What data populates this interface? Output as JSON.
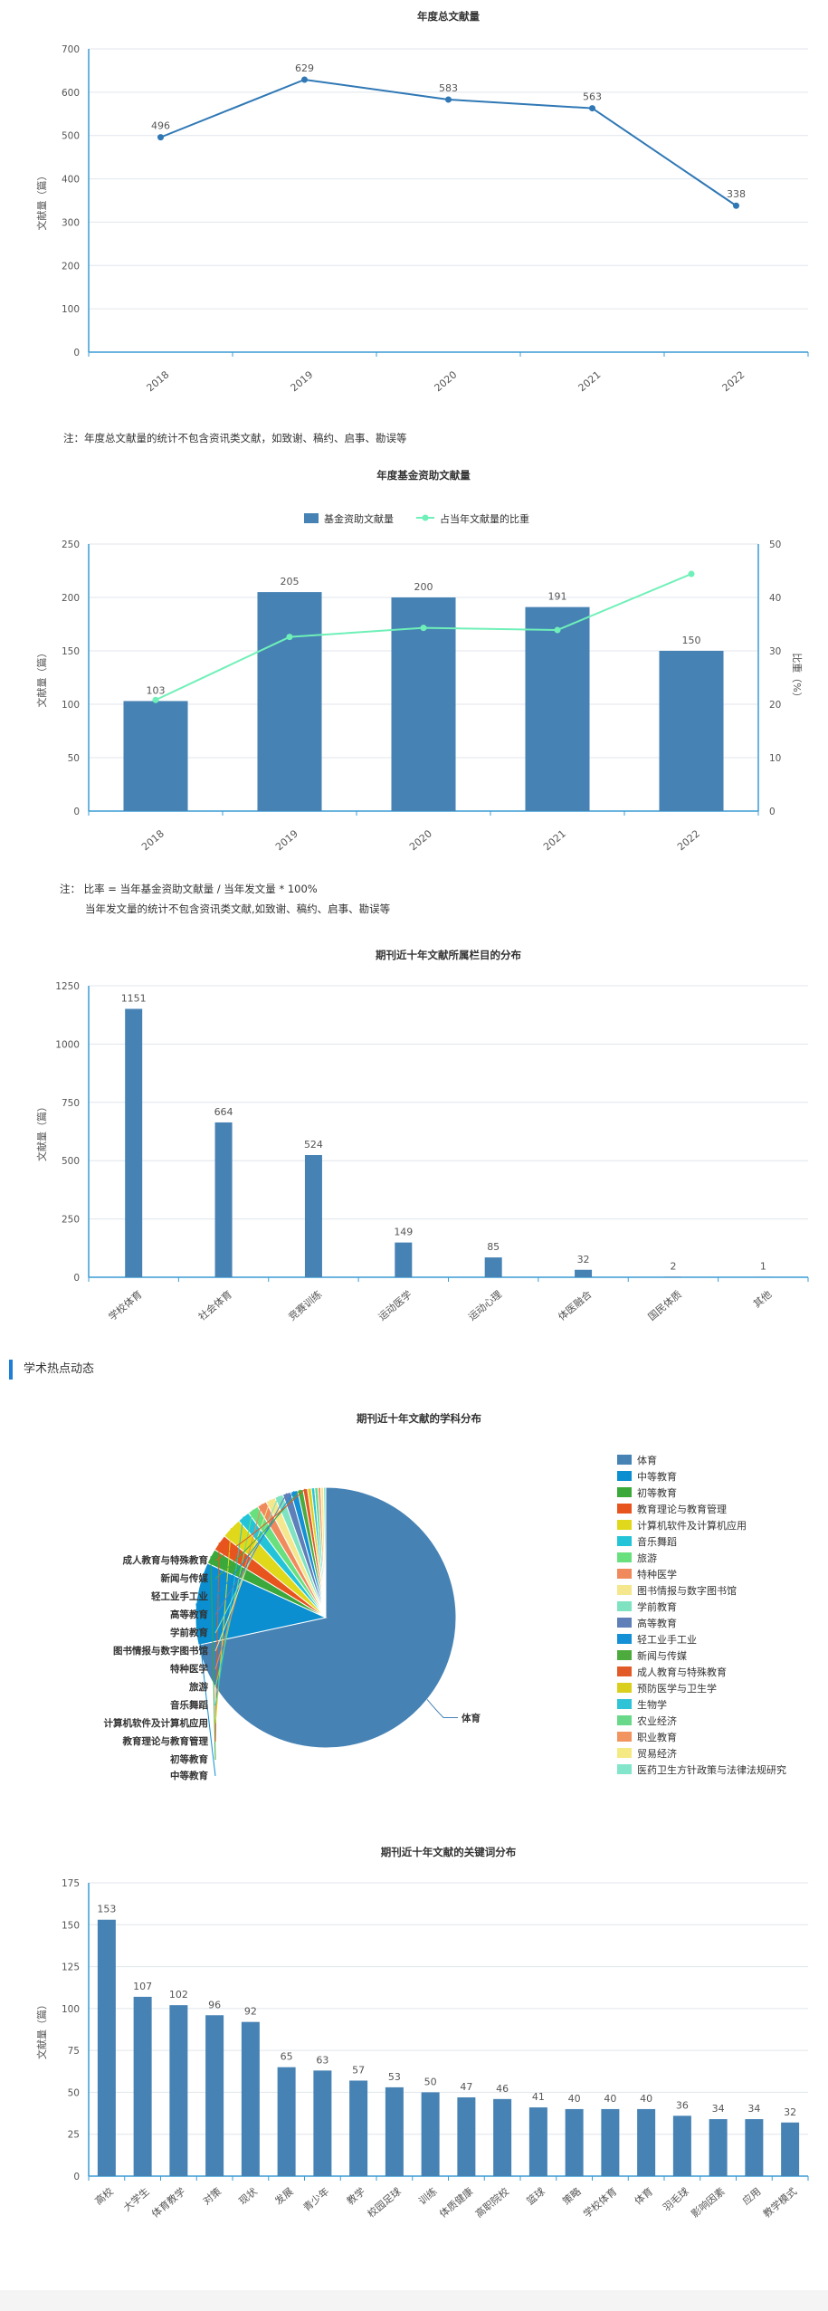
{
  "chart_data": [
    {
      "id": "annual",
      "type": "line",
      "title": "年度总文献量",
      "categories": [
        "2018",
        "2019",
        "2020",
        "2021",
        "2022"
      ],
      "values": [
        496,
        629,
        583,
        563,
        338
      ],
      "ylabel": "文献量（篇）",
      "ylim": [
        0,
        700
      ],
      "yticks": [
        0,
        100,
        200,
        300,
        400,
        500,
        600,
        700
      ],
      "color": "#2f78b5"
    },
    {
      "id": "fund",
      "type": "bar",
      "title": "年度基金资助文献量",
      "categories": [
        "2018",
        "2019",
        "2020",
        "2021",
        "2022"
      ],
      "series": [
        {
          "name": "基金资助文献量",
          "values": [
            103,
            205,
            200,
            191,
            150
          ],
          "color": "#4682b4"
        },
        {
          "name": "占当年文献量的比重",
          "values": [
            20.8,
            32.6,
            34.3,
            33.9,
            44.4
          ],
          "color": "#6ff0b8"
        }
      ],
      "ylabel": "文献量（篇）",
      "y2label": "比重（%）",
      "ylim": [
        0,
        250
      ],
      "yticks": [
        0,
        50,
        100,
        150,
        200,
        250
      ],
      "y2lim": [
        0,
        50
      ],
      "y2ticks": [
        0,
        10,
        20,
        30,
        40,
        50
      ]
    },
    {
      "id": "column",
      "type": "bar",
      "title": "期刊近十年文献所属栏目的分布",
      "categories": [
        "学校体育",
        "社会体育",
        "竞赛训练",
        "运动医学",
        "运动心理",
        "体医融合",
        "国民体质",
        "其他"
      ],
      "values": [
        1151,
        664,
        524,
        149,
        85,
        32,
        2,
        1
      ],
      "ylabel": "文献量（篇）",
      "ylim": [
        0,
        1250
      ],
      "yticks": [
        0,
        250,
        500,
        750,
        1000,
        1250
      ],
      "color": "#4682b4"
    },
    {
      "id": "subject",
      "type": "pie",
      "title": "期刊近十年文献的学科分布",
      "labels": [
        "体育",
        "中等教育",
        "初等教育",
        "教育理论与教育管理",
        "计算机软件及计算机应用",
        "音乐舞蹈",
        "旅游",
        "特种医学",
        "图书情报与数字图书馆",
        "学前教育",
        "高等教育",
        "轻工业手工业",
        "新闻与传媒",
        "成人教育与特殊教育",
        "预防医学与卫生学",
        "生物学",
        "农业经济",
        "职业教育",
        "贸易经济",
        "医药卫生方针政策与法律法规研究"
      ],
      "values": [
        2100,
        300,
        55,
        60,
        75,
        45,
        40,
        35,
        35,
        30,
        30,
        25,
        20,
        16,
        14,
        12,
        12,
        10,
        10,
        8
      ],
      "colors": [
        "#4682b4",
        "#0b8fd1",
        "#3aa83a",
        "#e8541e",
        "#e0d81a",
        "#23c4d8",
        "#69e07e",
        "#f08a5d",
        "#f4e78e",
        "#7fe3c2",
        "#5e7fb8",
        "#1390d6",
        "#4cab3c",
        "#e25a28",
        "#dbcf1e",
        "#2ec3d6",
        "#6ad889",
        "#f1945f",
        "#f5e983",
        "#83e5c9"
      ],
      "pie_callouts": [
        "体育",
        "中等教育",
        "初等教育",
        "教育理论与教育管理",
        "计算机软件及计算机应用",
        "音乐舞蹈",
        "旅游",
        "特种医学",
        "图书情报与数字图书馆",
        "学前教育",
        "高等教育",
        "轻工业手工业",
        "新闻与传媒",
        "成人教育与特殊教育"
      ],
      "legend": [
        "体育",
        "中等教育",
        "初等教育",
        "教育理论与教育管理",
        "计算机软件及计算机应用",
        "音乐舞蹈",
        "旅游",
        "特种医学",
        "图书情报与数字图书馆",
        "学前教育",
        "高等教育",
        "轻工业手工业",
        "新闻与传媒",
        "成人教育与特殊教育",
        "预防医学与卫生学",
        "生物学",
        "农业经济",
        "职业教育",
        "贸易经济",
        "医药卫生方针政策与法律法规研究"
      ]
    },
    {
      "id": "keyword",
      "type": "bar",
      "title": "期刊近十年文献的关键词分布",
      "categories": [
        "高校",
        "大学生",
        "体育教学",
        "对策",
        "现状",
        "发展",
        "青少年",
        "教学",
        "校园足球",
        "训练",
        "体质健康",
        "高职院校",
        "篮球",
        "策略",
        "学校体育",
        "体育",
        "羽毛球",
        "影响因素",
        "应用",
        "教学模式"
      ],
      "values": [
        153,
        107,
        102,
        96,
        92,
        65,
        63,
        57,
        53,
        50,
        47,
        46,
        41,
        40,
        40,
        40,
        36,
        34,
        34,
        32
      ],
      "ylabel": "文献量（篇）",
      "ylim": [
        0,
        175
      ],
      "yticks": [
        0,
        25,
        50,
        75,
        100,
        125,
        150,
        175
      ],
      "color": "#4682b4"
    }
  ],
  "notes": {
    "annual": "注：年度总文献量的统计不包含资讯类文献，如致谢、稿约、启事、勘误等",
    "fund_line1": "注： 比率 = 当年基金资助文献量 / 当年发文量 * 100%",
    "fund_line2": "当年发文量的统计不包含资讯类文献,如致谢、稿约、启事、勘误等"
  },
  "section": {
    "title": "学术热点动态"
  }
}
